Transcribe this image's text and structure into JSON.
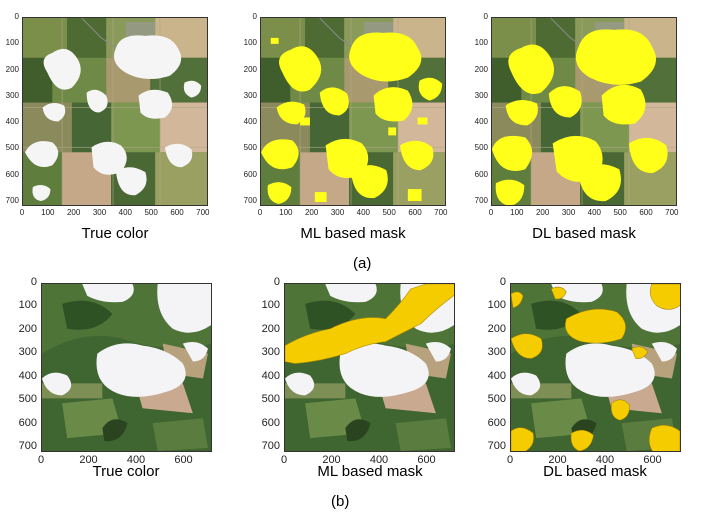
{
  "row_a": {
    "label": "(a)",
    "y_ticks": [
      "0",
      "100",
      "200",
      "300",
      "400",
      "500",
      "600",
      "700"
    ],
    "x_ticks": [
      "0",
      "100",
      "200",
      "300",
      "400",
      "500",
      "600",
      "700"
    ],
    "panels": [
      {
        "caption": "True color"
      },
      {
        "caption": "ML based mask"
      },
      {
        "caption": "DL based mask"
      }
    ],
    "mask_color": "#ffff1a"
  },
  "row_b": {
    "label": "(b)",
    "y_ticks": [
      "0",
      "100",
      "200",
      "300",
      "400",
      "500",
      "600",
      "700"
    ],
    "x_ticks": [
      "0",
      "200",
      "400",
      "600"
    ],
    "panels": [
      {
        "caption": "True color"
      },
      {
        "caption": "ML based mask"
      },
      {
        "caption": "DL based mask"
      }
    ],
    "mask_color": "#f5cc00"
  }
}
